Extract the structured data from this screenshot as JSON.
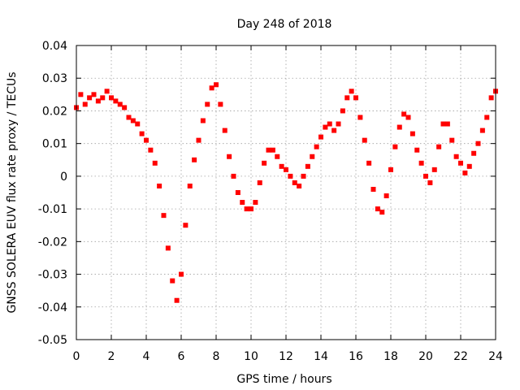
{
  "chart_data": {
    "type": "scatter",
    "title": "Day 248 of 2018",
    "xlabel": "GPS time / hours",
    "ylabel": "GNSS SOLERA EUV flux rate proxy / TECUs",
    "xlim": [
      0,
      24
    ],
    "ylim": [
      -0.05,
      0.04
    ],
    "x_ticks": [
      "0",
      "2",
      "4",
      "6",
      "8",
      "10",
      "12",
      "14",
      "16",
      "18",
      "20",
      "22",
      "24"
    ],
    "y_ticks": [
      "0.04",
      "0.03",
      "0.02",
      "0.01",
      "0",
      "-0.01",
      "-0.02",
      "-0.03",
      "-0.04",
      "-0.05"
    ],
    "grid": true,
    "marker": "square",
    "series_color": "#ff0000",
    "series": [
      {
        "points": [
          [
            0.0,
            0.021
          ],
          [
            0.25,
            0.025
          ],
          [
            0.5,
            0.022
          ],
          [
            0.75,
            0.024
          ],
          [
            1.0,
            0.025
          ],
          [
            1.25,
            0.023
          ],
          [
            1.5,
            0.024
          ],
          [
            1.75,
            0.026
          ],
          [
            2.0,
            0.024
          ],
          [
            2.25,
            0.023
          ],
          [
            2.5,
            0.022
          ],
          [
            2.75,
            0.021
          ],
          [
            3.0,
            0.018
          ],
          [
            3.25,
            0.017
          ],
          [
            3.5,
            0.016
          ],
          [
            3.75,
            0.013
          ],
          [
            4.0,
            0.011
          ],
          [
            4.25,
            0.008
          ],
          [
            4.5,
            0.004
          ],
          [
            4.75,
            -0.003
          ],
          [
            5.0,
            -0.012
          ],
          [
            5.25,
            -0.022
          ],
          [
            5.5,
            -0.032
          ],
          [
            5.75,
            -0.038
          ],
          [
            6.0,
            -0.03
          ],
          [
            6.25,
            -0.015
          ],
          [
            6.5,
            -0.003
          ],
          [
            6.75,
            0.005
          ],
          [
            7.0,
            0.011
          ],
          [
            7.25,
            0.017
          ],
          [
            7.5,
            0.022
          ],
          [
            7.75,
            0.027
          ],
          [
            8.0,
            0.028
          ],
          [
            8.25,
            0.022
          ],
          [
            8.5,
            0.014
          ],
          [
            8.75,
            0.006
          ],
          [
            9.0,
            0.0
          ],
          [
            9.25,
            -0.005
          ],
          [
            9.5,
            -0.008
          ],
          [
            9.75,
            -0.01
          ],
          [
            10.0,
            -0.01
          ],
          [
            10.25,
            -0.008
          ],
          [
            10.5,
            -0.002
          ],
          [
            10.75,
            0.004
          ],
          [
            11.0,
            0.008
          ],
          [
            11.25,
            0.008
          ],
          [
            11.5,
            0.006
          ],
          [
            11.75,
            0.003
          ],
          [
            12.0,
            0.002
          ],
          [
            12.25,
            0.0
          ],
          [
            12.5,
            -0.002
          ],
          [
            12.75,
            -0.003
          ],
          [
            13.0,
            0.0
          ],
          [
            13.25,
            0.003
          ],
          [
            13.5,
            0.006
          ],
          [
            13.75,
            0.009
          ],
          [
            14.0,
            0.012
          ],
          [
            14.25,
            0.015
          ],
          [
            14.5,
            0.016
          ],
          [
            14.75,
            0.014
          ],
          [
            15.0,
            0.016
          ],
          [
            15.25,
            0.02
          ],
          [
            15.5,
            0.024
          ],
          [
            15.75,
            0.026
          ],
          [
            16.0,
            0.024
          ],
          [
            16.25,
            0.018
          ],
          [
            16.5,
            0.011
          ],
          [
            16.75,
            0.004
          ],
          [
            17.0,
            -0.004
          ],
          [
            17.25,
            -0.01
          ],
          [
            17.5,
            -0.011
          ],
          [
            17.75,
            -0.006
          ],
          [
            18.0,
            0.002
          ],
          [
            18.25,
            0.009
          ],
          [
            18.5,
            0.015
          ],
          [
            18.75,
            0.019
          ],
          [
            19.0,
            0.018
          ],
          [
            19.25,
            0.013
          ],
          [
            19.5,
            0.008
          ],
          [
            19.75,
            0.004
          ],
          [
            20.0,
            0.0
          ],
          [
            20.25,
            -0.002
          ],
          [
            20.5,
            0.002
          ],
          [
            20.75,
            0.009
          ],
          [
            21.0,
            0.016
          ],
          [
            21.25,
            0.016
          ],
          [
            21.5,
            0.011
          ],
          [
            21.75,
            0.006
          ],
          [
            22.0,
            0.004
          ],
          [
            22.25,
            0.001
          ],
          [
            22.5,
            0.003
          ],
          [
            22.75,
            0.007
          ],
          [
            23.0,
            0.01
          ],
          [
            23.25,
            0.014
          ],
          [
            23.5,
            0.018
          ],
          [
            23.75,
            0.024
          ],
          [
            24.0,
            0.026
          ]
        ]
      }
    ]
  }
}
